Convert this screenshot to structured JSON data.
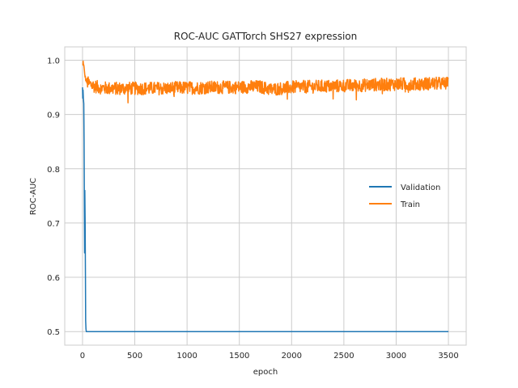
{
  "chart_data": {
    "type": "line",
    "title": "ROC-AUC GATTorch SHS27 expression",
    "xlabel": "epoch",
    "ylabel": "ROC-AUC",
    "xlim": [
      -170,
      3670
    ],
    "ylim": [
      0.475,
      1.0245
    ],
    "xticks": [
      0,
      500,
      1000,
      1500,
      2000,
      2500,
      3000,
      3500
    ],
    "yticks": [
      0.5,
      0.6,
      0.7,
      0.8,
      0.9,
      1.0
    ],
    "ytick_labels": [
      "0.5",
      "0.6",
      "0.7",
      "0.8",
      "0.9",
      "1.0"
    ],
    "grid": true,
    "legend_position": "center-right",
    "series": [
      {
        "name": "Validation",
        "color": "#1f77b4",
        "x": [
          0,
          2,
          5,
          8,
          12,
          15,
          18,
          20,
          22,
          25,
          28,
          30,
          33,
          36,
          40,
          50,
          100,
          500,
          1000,
          1500,
          2000,
          2500,
          3000,
          3500
        ],
        "y": [
          0.95,
          0.93,
          0.945,
          0.93,
          0.92,
          0.85,
          0.72,
          0.645,
          0.76,
          0.7,
          0.6,
          0.52,
          0.505,
          0.5,
          0.5,
          0.5,
          0.5,
          0.5,
          0.5,
          0.5,
          0.5,
          0.5,
          0.5,
          0.5
        ]
      },
      {
        "name": "Train",
        "color": "#ff7f0e",
        "x": [
          0,
          5,
          10,
          15,
          20,
          30,
          40,
          60,
          80,
          100,
          150,
          200,
          250,
          300,
          400,
          500,
          600,
          700,
          800,
          900,
          1000,
          1100,
          1200,
          1300,
          1400,
          1500,
          1600,
          1700,
          1800,
          1900,
          2000,
          2100,
          2200,
          2300,
          2400,
          2500,
          2600,
          2700,
          2800,
          2900,
          3000,
          3100,
          3200,
          3300,
          3400,
          3500
        ],
        "y": [
          0.99,
          0.998,
          0.993,
          0.985,
          0.975,
          0.965,
          0.96,
          0.957,
          0.955,
          0.953,
          0.95,
          0.949,
          0.948,
          0.948,
          0.948,
          0.948,
          0.948,
          0.948,
          0.948,
          0.949,
          0.949,
          0.949,
          0.95,
          0.95,
          0.95,
          0.95,
          0.951,
          0.951,
          0.946,
          0.948,
          0.95,
          0.951,
          0.951,
          0.952,
          0.952,
          0.953,
          0.953,
          0.954,
          0.955,
          0.955,
          0.956,
          0.956,
          0.956,
          0.957,
          0.957,
          0.957
        ],
        "noise_amplitude": 0.012
      }
    ]
  }
}
